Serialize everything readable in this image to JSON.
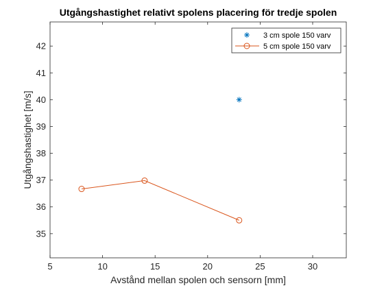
{
  "chart_data": {
    "type": "line",
    "title": "Utgångshastighet relativt spolens placering för tredje spolen",
    "xlabel": "Avstånd mellan spolen och sensorn [mm]",
    "ylabel": "Utgångshastighet [m/s]",
    "xlim": [
      5,
      33.2
    ],
    "ylim": [
      34.1,
      42.9
    ],
    "xticks": [
      5,
      10,
      15,
      20,
      25,
      30
    ],
    "yticks": [
      35,
      36,
      37,
      38,
      39,
      40,
      41,
      42
    ],
    "grid": false,
    "legend_position": "top-right",
    "series": [
      {
        "name": "3 cm spole 150 varv",
        "marker": "asterisk",
        "line": false,
        "color": "#0072BD",
        "x": [
          23
        ],
        "y": [
          40.0
        ]
      },
      {
        "name": "5 cm spole 150 varv",
        "marker": "circle",
        "line": true,
        "color": "#D95319",
        "x": [
          8,
          14,
          23
        ],
        "y": [
          36.67,
          36.98,
          35.5
        ]
      }
    ]
  }
}
